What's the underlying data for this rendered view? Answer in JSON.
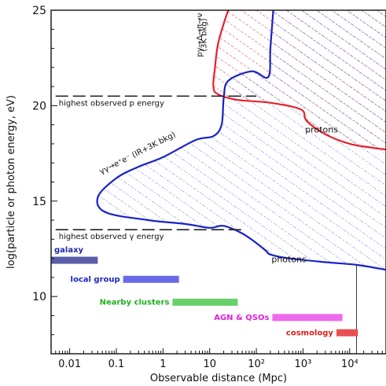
{
  "chart_data": {
    "type": "line",
    "xlabel": "Observable distance (Mpc)",
    "ylabel": "log(particle or photon energy, eV)",
    "x_scale": "log10",
    "xlim": [
      0.004,
      60000
    ],
    "ylim": [
      7,
      25
    ],
    "x_ticks": [
      {
        "value": 0.01,
        "label": "0.01"
      },
      {
        "value": 0.1,
        "label": "0.1"
      },
      {
        "value": 1,
        "label": "1"
      },
      {
        "value": 10,
        "label": "10"
      },
      {
        "value": 100,
        "label": "10²"
      },
      {
        "value": 1000,
        "label": "10³"
      },
      {
        "value": 10000,
        "label": "10⁴"
      }
    ],
    "y_ticks": [
      {
        "value": 10,
        "label": "10"
      },
      {
        "value": 15,
        "label": "15"
      },
      {
        "value": 20,
        "label": "20"
      },
      {
        "value": 25,
        "label": "25"
      }
    ],
    "series": [
      {
        "name": "protons",
        "color": "#e8202a",
        "hatch_color": "#d03c3c",
        "points": [
          [
            25,
            25
          ],
          [
            20,
            24.3
          ],
          [
            15,
            23.2
          ],
          [
            13,
            22
          ],
          [
            12,
            21
          ],
          [
            15,
            20.6
          ],
          [
            40,
            20.3
          ],
          [
            200,
            20.15
          ],
          [
            900,
            19.8
          ],
          [
            1200,
            19.2
          ],
          [
            3000,
            18.5
          ],
          [
            10000,
            18
          ],
          [
            30000,
            17.8
          ],
          [
            60000,
            17.7
          ]
        ]
      },
      {
        "name": "photons",
        "color": "#1a22c8",
        "hatch_color": "#3a52e0",
        "points": [
          [
            230,
            25
          ],
          [
            200,
            23
          ],
          [
            180,
            21.5
          ],
          [
            80,
            21.8
          ],
          [
            25,
            21.3
          ],
          [
            20,
            20.4
          ],
          [
            18,
            19
          ],
          [
            12,
            18.4
          ],
          [
            5,
            18.2
          ],
          [
            1,
            17.3
          ],
          [
            0.3,
            16.8
          ],
          [
            0.1,
            16.2
          ],
          [
            0.04,
            15.2
          ],
          [
            0.06,
            14.4
          ],
          [
            0.5,
            14
          ],
          [
            3,
            13.8
          ],
          [
            10,
            13.6
          ],
          [
            20,
            13.7
          ],
          [
            50,
            13.3
          ],
          [
            100,
            12.8
          ],
          [
            160,
            12.4
          ],
          [
            200,
            12.2
          ],
          [
            500,
            12
          ],
          [
            3000,
            11.8
          ],
          [
            15000,
            11.65
          ],
          [
            60000,
            11.4
          ]
        ]
      }
    ],
    "threshold_lines": [
      {
        "y": 20.5,
        "x_range": [
          0.005,
          100
        ],
        "label": "highest observed p energy"
      },
      {
        "y": 13.5,
        "x_range": [
          0.005,
          50
        ],
        "label": "highest observed γ energy"
      }
    ],
    "vertical_line": {
      "x": 14000,
      "y_range": [
        7,
        11.7
      ]
    },
    "annotations": [
      {
        "text": "pγ→Δ→π→ν",
        "x": 8,
        "y": 23.7
      },
      {
        "text": "(3K bkg)",
        "x": 10,
        "y": 23.7
      },
      {
        "text": "γγ→e⁺e⁻ (IR+3K bkg)",
        "x": 0.3,
        "y": 17.4
      },
      {
        "text": "protons",
        "x": 2500,
        "y": 18.6
      },
      {
        "text": "photons",
        "x": 500,
        "y": 11.8
      }
    ],
    "scale_bars": [
      {
        "label": "galaxy",
        "color": "#5a5ea8",
        "label_color": "#1e2aa8",
        "x_range": [
          0.004,
          0.04
        ],
        "y": 11.9
      },
      {
        "label": "local group",
        "color": "#6a6ae8",
        "label_color": "#1a26c8",
        "x_range": [
          0.14,
          2.2
        ],
        "y": 10.9
      },
      {
        "label": "Nearby clusters",
        "color": "#6ad06a",
        "label_color": "#22b022",
        "x_range": [
          1.6,
          40
        ],
        "y": 9.7
      },
      {
        "label": "AGN & QSOs",
        "color": "#ec6aec",
        "label_color": "#e020e0",
        "x_range": [
          220,
          7000
        ],
        "y": 8.9
      },
      {
        "label": "cosmology",
        "color": "#e85050",
        "label_color": "#dc2020",
        "x_range": [
          5200,
          15000
        ],
        "y": 8.1
      }
    ]
  }
}
